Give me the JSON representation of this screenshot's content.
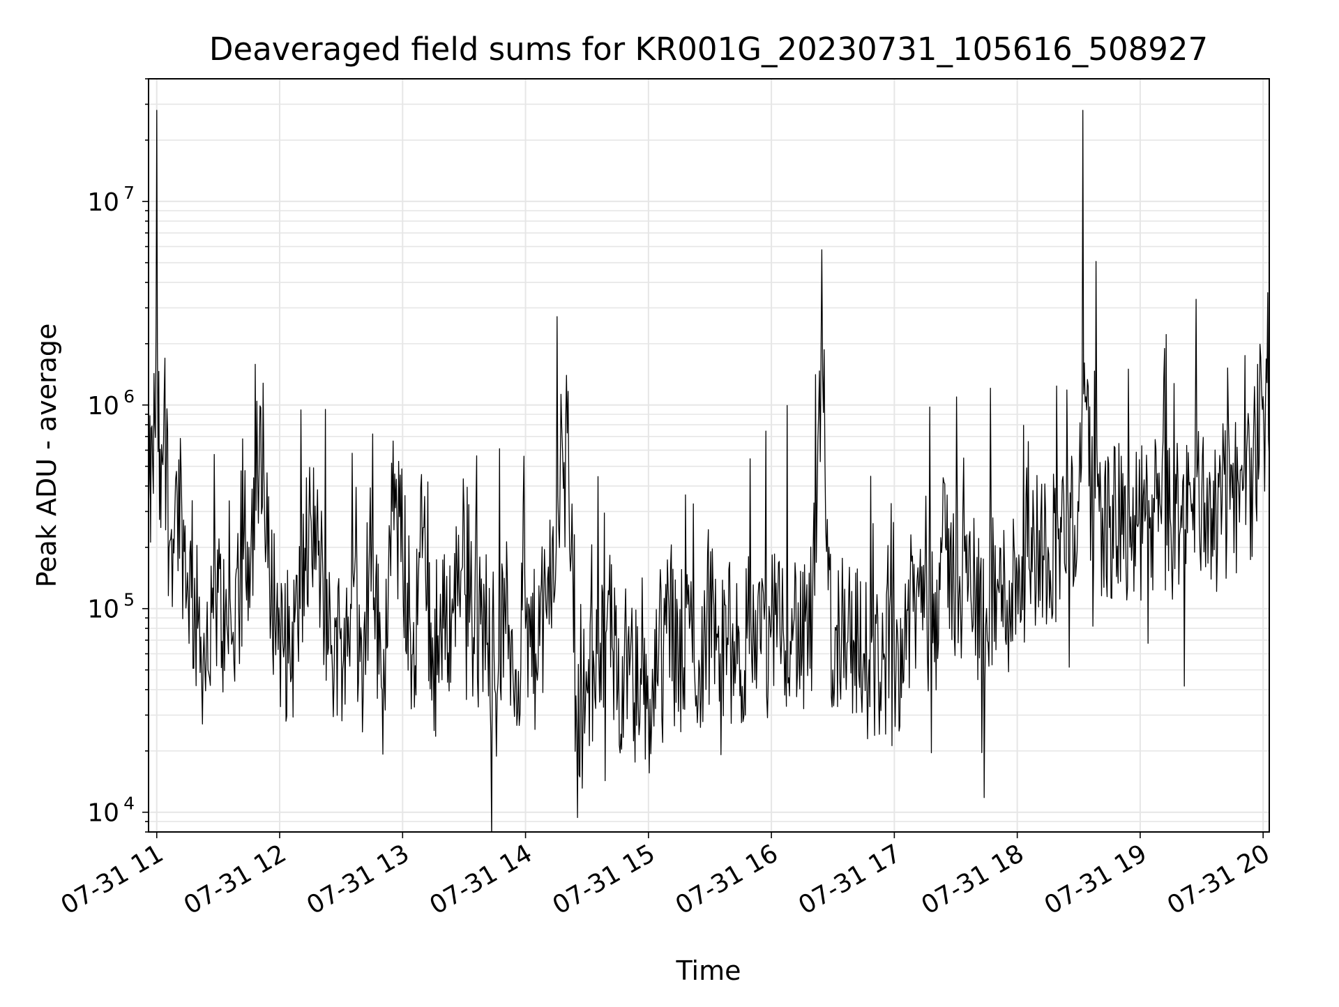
{
  "chart_data": {
    "type": "line",
    "title": "Deaveraged field sums for KR001G_20230731_105616_508927",
    "xlabel": "Time",
    "ylabel": "Peak ADU - average",
    "yscale": "log",
    "ylim": [
      8000,
      40000000
    ],
    "xlim": [
      "2023-07-31 10:56",
      "2023-07-31 20:03"
    ],
    "grid": true,
    "legend": "none",
    "line_color": "#000000",
    "grid_color": "#e6e6e6",
    "x_ticks": [
      "07-31 11",
      "07-31 12",
      "07-31 13",
      "07-31 14",
      "07-31 15",
      "07-31 16",
      "07-31 17",
      "07-31 18",
      "07-31 19",
      "07-31 20"
    ],
    "y_ticks": [
      {
        "value": 10000,
        "base": "10",
        "exp": "4"
      },
      {
        "value": 100000,
        "base": "10",
        "exp": "5"
      },
      {
        "value": 1000000,
        "base": "10",
        "exp": "6"
      },
      {
        "value": 10000000,
        "base": "10",
        "exp": "7"
      }
    ],
    "series": [
      {
        "x": [
          "10:56",
          "10:58",
          "11:00",
          "11:02",
          "11:04",
          "11:06",
          "11:10",
          "11:15",
          "11:20",
          "11:25",
          "11:30",
          "11:35",
          "11:40",
          "11:45",
          "11:50",
          "11:55",
          "12:00",
          "12:05",
          "12:10",
          "12:15",
          "12:20",
          "12:25",
          "12:30",
          "12:35",
          "12:40",
          "12:45",
          "12:50",
          "12:55",
          "13:00",
          "13:05",
          "13:10",
          "13:15",
          "13:20",
          "13:25",
          "13:30",
          "13:35",
          "13:40",
          "13:45",
          "13:50",
          "13:55",
          "14:00",
          "14:05",
          "14:10",
          "14:15",
          "14:20",
          "14:25",
          "14:30",
          "14:35",
          "14:40",
          "14:45",
          "14:50",
          "14:55",
          "15:00",
          "15:05",
          "15:10",
          "15:15",
          "15:20",
          "15:25",
          "15:30",
          "15:35",
          "15:40",
          "15:45",
          "15:50",
          "15:55",
          "16:00",
          "16:05",
          "16:10",
          "16:15",
          "16:20",
          "16:25",
          "16:30",
          "16:35",
          "16:40",
          "16:45",
          "16:50",
          "16:55",
          "17:00",
          "17:05",
          "17:10",
          "17:15",
          "17:20",
          "17:25",
          "17:30",
          "17:35",
          "17:40",
          "17:45",
          "17:50",
          "17:55",
          "18:00",
          "18:05",
          "18:10",
          "18:15",
          "18:20",
          "18:25",
          "18:30",
          "18:32",
          "18:35",
          "18:40",
          "18:45",
          "18:50",
          "18:55",
          "19:00",
          "19:05",
          "19:10",
          "19:15",
          "19:20",
          "19:25",
          "19:30",
          "19:35",
          "19:40",
          "19:45",
          "19:50",
          "19:55",
          "20:00",
          "20:03"
        ],
        "y": [
          300000,
          500000,
          28000000,
          250000,
          1700000,
          200000,
          350000,
          150000,
          80000,
          50000,
          120000,
          60000,
          100000,
          200000,
          500000,
          150000,
          80000,
          60000,
          100000,
          300000,
          150000,
          60000,
          80000,
          100000,
          70000,
          200000,
          40000,
          300000,
          200000,
          60000,
          250000,
          50000,
          80000,
          100000,
          300000,
          60000,
          100000,
          40000,
          100000,
          50000,
          80000,
          60000,
          100000,
          200000,
          1400000,
          25000,
          40000,
          60000,
          100000,
          40000,
          70000,
          35000,
          30000,
          60000,
          100000,
          50000,
          80000,
          50000,
          120000,
          60000,
          70000,
          50000,
          90000,
          60000,
          80000,
          70000,
          100000,
          60000,
          90000,
          1400000,
          50000,
          100000,
          70000,
          60000,
          50000,
          60000,
          50000,
          80000,
          100000,
          150000,
          120000,
          200000,
          130000,
          150000,
          120000,
          100000,
          120000,
          110000,
          150000,
          180000,
          200000,
          200000,
          220000,
          250000,
          300000,
          28000000,
          400000,
          300000,
          250000,
          280000,
          200000,
          260000,
          280000,
          300000,
          250000,
          320000,
          300000,
          340000,
          310000,
          330000,
          350000,
          380000,
          450000,
          1100000,
          550000
        ]
      }
    ]
  }
}
